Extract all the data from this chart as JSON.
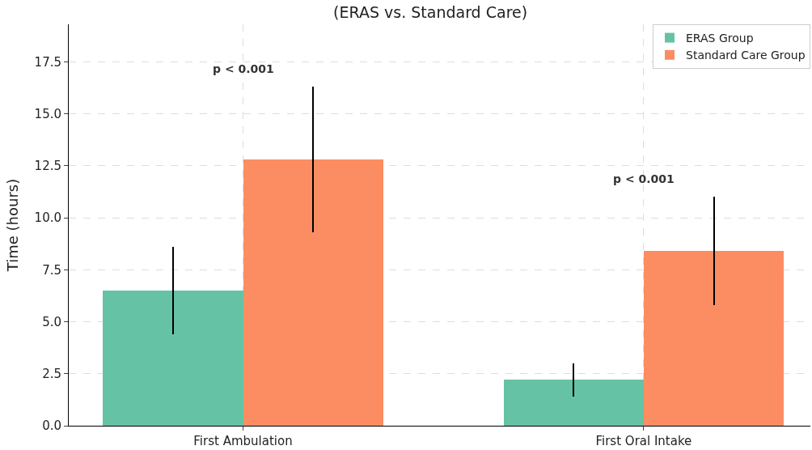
{
  "chart_data": {
    "type": "bar",
    "title": "(ERAS vs. Standard Care)",
    "ylabel": "Time (hours)",
    "categories": [
      "First Ambulation",
      "First Oral Intake"
    ],
    "series": [
      {
        "name": "ERAS Group",
        "color": "#66c2a5",
        "values": [
          6.5,
          2.2
        ],
        "errors": [
          2.1,
          0.8
        ]
      },
      {
        "name": "Standard Care Group",
        "color": "#fc8d62",
        "values": [
          12.8,
          8.4
        ],
        "errors": [
          3.5,
          2.6
        ]
      }
    ],
    "ylim": [
      0,
      19.3
    ],
    "yticks": [
      {
        "value": 0,
        "label": "0.0"
      },
      {
        "value": 2.5,
        "label": "2.5"
      },
      {
        "value": 5,
        "label": "5.0"
      },
      {
        "value": 7.5,
        "label": "7.5"
      },
      {
        "value": 10,
        "label": "10.0"
      },
      {
        "value": 12.5,
        "label": "12.5"
      },
      {
        "value": 15,
        "label": "15.0"
      },
      {
        "value": 17.5,
        "label": "17.5"
      }
    ],
    "annotations": [
      "p < 0.001",
      "p < 0.001"
    ],
    "grid": true,
    "legend": "top right"
  }
}
